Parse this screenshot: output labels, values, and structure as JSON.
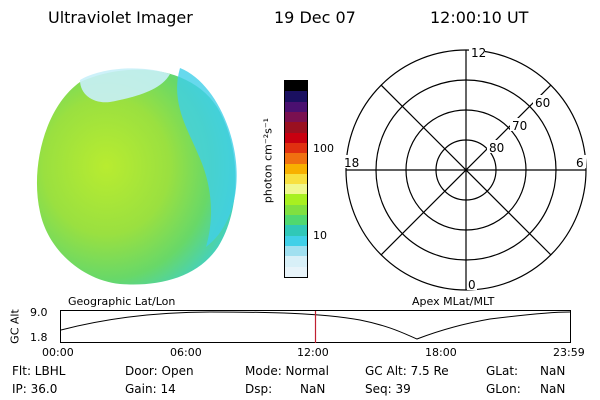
{
  "header": {
    "title": "Ultraviolet Imager",
    "date": "19 Dec 07",
    "time": "12:00:10 UT"
  },
  "colorbar": {
    "label": "photon cm⁻²s⁻¹",
    "ticks": [
      "100",
      "10"
    ],
    "colors": [
      "#000000",
      "#1a1060",
      "#4a1070",
      "#7a1050",
      "#9a1020",
      "#c80010",
      "#e03010",
      "#f07010",
      "#f8b000",
      "#f8e040",
      "#f0f890",
      "#a8f020",
      "#80e040",
      "#50d870",
      "#30c8b8",
      "#40d0e8",
      "#a0e0f0",
      "#d8f0f8",
      "#e8f4fa"
    ]
  },
  "polar_plot": {
    "mlt_labels": {
      "top": "12",
      "bottom": "0",
      "left": "18",
      "right": "6"
    },
    "lat_labels": [
      "60",
      "70",
      "80"
    ]
  },
  "timeline": {
    "left_title": "Geographic Lat/Lon",
    "right_title": "Apex MLat/MLT",
    "axis_label": "GC Alt",
    "y_ticks": [
      "9.0",
      "1.8"
    ],
    "x_ticks": [
      "00:00",
      "06:00",
      "12:00",
      "18:00",
      "23:59"
    ],
    "current_time_hours": 12.0,
    "current_marker_color": "#c02030"
  },
  "status": {
    "flt": "Flt: LBHL",
    "ip": "IP: 36.0",
    "door": "Door: Open",
    "gain": "Gain: 14",
    "mode": "Mode: Normal",
    "dsp_label": "Dsp:",
    "dsp_value": "NaN",
    "gcalt": "GC Alt: 7.5 Re",
    "seq": "Seq: 39",
    "glat_label": "GLat:",
    "glat_value": "NaN",
    "glon_label": "GLon:",
    "glon_value": "NaN"
  }
}
